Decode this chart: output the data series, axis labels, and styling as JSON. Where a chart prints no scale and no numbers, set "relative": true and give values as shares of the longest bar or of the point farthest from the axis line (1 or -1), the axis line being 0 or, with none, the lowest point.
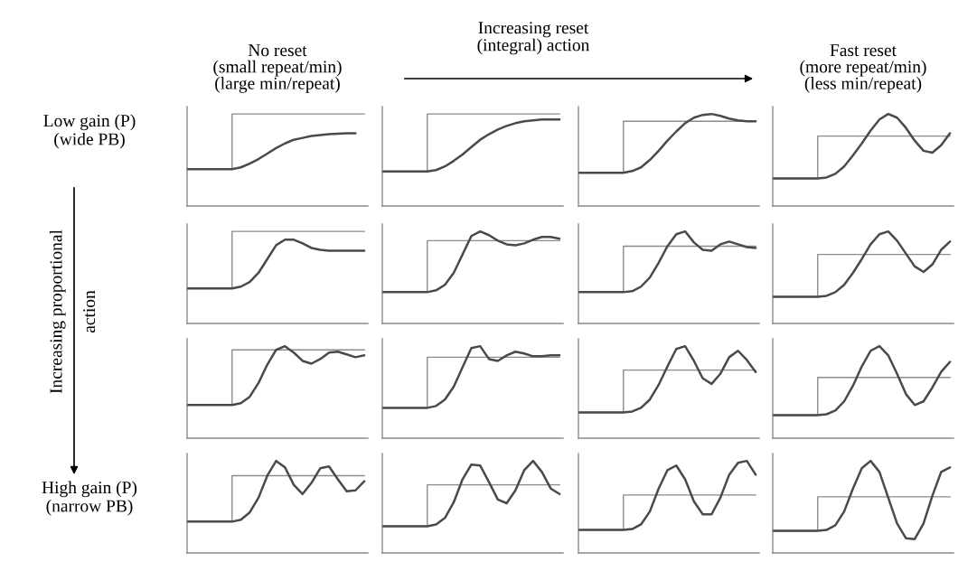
{
  "chart_data": [
    {
      "type": "line",
      "relative": true,
      "title": "No reset\n(small repeat/min)\n(large min/repeat)",
      "ylabel": "Low gain (P)\n(wide PB)",
      "annotations": [
        "Increasing reset\n(integral) action",
        "Increasing proportional\naction"
      ],
      "categories": [
        null,
        null,
        null,
        null,
        null,
        null,
        null,
        null,
        null,
        null,
        null,
        null,
        null,
        null,
        null,
        null,
        null,
        null,
        null,
        null,
        null
      ],
      "series": [
        {
          "type": "step",
          "color": "#8c8c8c",
          "values": [
            0.4,
            0.4,
            0.4,
            0.4,
            0.4,
            1.0,
            1.0,
            1.0,
            1.0,
            1.0,
            1.0,
            1.0,
            1.0,
            1.0,
            1.0,
            1.0,
            1.0,
            1.0,
            1.0,
            1.0,
            1.0
          ]
        },
        {
          "type": "line",
          "color": "#4a4a4a",
          "values": [
            0.4,
            0.4,
            0.4,
            0.4,
            0.4,
            0.4,
            0.42,
            0.46,
            0.51,
            0.57,
            0.63,
            0.68,
            0.72,
            0.74,
            0.76,
            0.77,
            0.78,
            0.785,
            0.79,
            0.79,
            null
          ]
        }
      ]
    },
    {
      "type": "line",
      "relative": true,
      "categories": [
        null,
        null,
        null,
        null,
        null,
        null,
        null,
        null,
        null,
        null,
        null,
        null,
        null,
        null,
        null,
        null,
        null,
        null,
        null,
        null,
        null
      ],
      "series": [
        {
          "type": "step",
          "color": "#8c8c8c",
          "values": [
            0.375,
            0.375,
            0.375,
            0.375,
            0.375,
            1.0,
            1.0,
            1.0,
            1.0,
            1.0,
            1.0,
            1.0,
            1.0,
            1.0,
            1.0,
            1.0,
            1.0,
            1.0,
            1.0,
            1.0,
            1.0
          ]
        },
        {
          "type": "line",
          "color": "#4a4a4a",
          "values": [
            0.375,
            0.375,
            0.375,
            0.375,
            0.375,
            0.375,
            0.39,
            0.43,
            0.49,
            0.56,
            0.64,
            0.72,
            0.78,
            0.83,
            0.87,
            0.9,
            0.92,
            0.93,
            0.94,
            0.94,
            0.94
          ]
        }
      ]
    },
    {
      "type": "line",
      "relative": true,
      "categories": [
        null,
        null,
        null,
        null,
        null,
        null,
        null,
        null,
        null,
        null,
        null,
        null,
        null,
        null,
        null,
        null,
        null,
        null,
        null,
        null,
        null
      ],
      "series": [
        {
          "type": "step",
          "color": "#8c8c8c",
          "values": [
            0.36,
            0.36,
            0.36,
            0.36,
            0.36,
            0.92,
            0.92,
            0.92,
            0.92,
            0.92,
            0.92,
            0.92,
            0.92,
            0.92,
            0.92,
            0.92,
            0.92,
            0.92,
            0.92,
            0.92,
            0.92
          ]
        },
        {
          "type": "line",
          "color": "#4a4a4a",
          "values": [
            0.36,
            0.36,
            0.36,
            0.36,
            0.36,
            0.36,
            0.38,
            0.42,
            0.5,
            0.6,
            0.71,
            0.81,
            0.9,
            0.96,
            0.99,
            1.0,
            0.98,
            0.95,
            0.93,
            0.92,
            0.92
          ]
        }
      ]
    },
    {
      "type": "line",
      "relative": true,
      "title": "Fast reset\n(more repeat/min)\n(less min/repeat)",
      "categories": [
        null,
        null,
        null,
        null,
        null,
        null,
        null,
        null,
        null,
        null,
        null,
        null,
        null,
        null,
        null,
        null,
        null,
        null,
        null,
        null,
        null
      ],
      "series": [
        {
          "type": "step",
          "color": "#8c8c8c",
          "values": [
            0.3,
            0.3,
            0.3,
            0.3,
            0.3,
            0.76,
            0.76,
            0.76,
            0.76,
            0.76,
            0.76,
            0.76,
            0.76,
            0.76,
            0.76,
            0.76,
            0.76,
            0.76,
            0.76,
            0.76,
            0.76
          ]
        },
        {
          "type": "line",
          "color": "#4a4a4a",
          "values": [
            0.3,
            0.3,
            0.3,
            0.3,
            0.3,
            0.3,
            0.31,
            0.35,
            0.43,
            0.55,
            0.68,
            0.82,
            0.94,
            1.0,
            0.96,
            0.85,
            0.71,
            0.6,
            0.58,
            0.66,
            0.79
          ]
        }
      ]
    },
    {
      "type": "line",
      "relative": true,
      "categories": [
        null,
        null,
        null,
        null,
        null,
        null,
        null,
        null,
        null,
        null,
        null,
        null,
        null,
        null,
        null,
        null,
        null,
        null,
        null,
        null,
        null
      ],
      "series": [
        {
          "type": "step",
          "color": "#8c8c8c",
          "values": [
            0.38,
            0.38,
            0.38,
            0.38,
            0.38,
            1.0,
            1.0,
            1.0,
            1.0,
            1.0,
            1.0,
            1.0,
            1.0,
            1.0,
            1.0,
            1.0,
            1.0,
            1.0,
            1.0,
            1.0,
            1.0
          ]
        },
        {
          "type": "line",
          "color": "#4a4a4a",
          "values": [
            0.38,
            0.38,
            0.38,
            0.38,
            0.38,
            0.38,
            0.4,
            0.45,
            0.55,
            0.7,
            0.85,
            0.91,
            0.91,
            0.87,
            0.82,
            0.8,
            0.79,
            0.79,
            0.79,
            0.79,
            0.79
          ]
        }
      ]
    },
    {
      "type": "line",
      "relative": true,
      "categories": [
        null,
        null,
        null,
        null,
        null,
        null,
        null,
        null,
        null,
        null,
        null,
        null,
        null,
        null,
        null,
        null,
        null,
        null,
        null,
        null,
        null
      ],
      "series": [
        {
          "type": "step",
          "color": "#8c8c8c",
          "values": [
            0.34,
            0.34,
            0.34,
            0.34,
            0.34,
            0.9,
            0.9,
            0.9,
            0.9,
            0.9,
            0.9,
            0.9,
            0.9,
            0.9,
            0.9,
            0.9,
            0.9,
            0.9,
            0.9,
            0.9,
            0.9
          ]
        },
        {
          "type": "line",
          "color": "#4a4a4a",
          "values": [
            0.34,
            0.34,
            0.34,
            0.34,
            0.34,
            0.34,
            0.36,
            0.42,
            0.55,
            0.75,
            0.95,
            1.0,
            0.96,
            0.9,
            0.86,
            0.85,
            0.87,
            0.91,
            0.94,
            0.94,
            0.92
          ]
        }
      ]
    },
    {
      "type": "line",
      "relative": true,
      "categories": [
        null,
        null,
        null,
        null,
        null,
        null,
        null,
        null,
        null,
        null,
        null,
        null,
        null,
        null,
        null,
        null,
        null,
        null,
        null,
        null,
        null
      ],
      "series": [
        {
          "type": "step",
          "color": "#8c8c8c",
          "values": [
            0.34,
            0.34,
            0.34,
            0.34,
            0.34,
            0.84,
            0.84,
            0.84,
            0.84,
            0.84,
            0.84,
            0.84,
            0.84,
            0.84,
            0.84,
            0.84,
            0.84,
            0.84,
            0.84,
            0.84,
            0.84
          ]
        },
        {
          "type": "line",
          "color": "#4a4a4a",
          "values": [
            0.34,
            0.34,
            0.34,
            0.34,
            0.34,
            0.34,
            0.35,
            0.4,
            0.5,
            0.66,
            0.84,
            0.97,
            1.0,
            0.88,
            0.8,
            0.79,
            0.86,
            0.89,
            0.86,
            0.83,
            0.82
          ]
        }
      ]
    },
    {
      "type": "line",
      "relative": true,
      "categories": [
        null,
        null,
        null,
        null,
        null,
        null,
        null,
        null,
        null,
        null,
        null,
        null,
        null,
        null,
        null,
        null,
        null,
        null,
        null,
        null,
        null
      ],
      "series": [
        {
          "type": "step",
          "color": "#8c8c8c",
          "values": [
            0.29,
            0.29,
            0.29,
            0.29,
            0.29,
            0.75,
            0.75,
            0.75,
            0.75,
            0.75,
            0.75,
            0.75,
            0.75,
            0.75,
            0.75,
            0.75,
            0.75,
            0.75,
            0.75,
            0.75,
            0.75
          ]
        },
        {
          "type": "line",
          "color": "#4a4a4a",
          "values": [
            0.29,
            0.29,
            0.29,
            0.29,
            0.29,
            0.29,
            0.3,
            0.34,
            0.42,
            0.55,
            0.7,
            0.86,
            0.97,
            1.0,
            0.9,
            0.76,
            0.62,
            0.56,
            0.64,
            0.8,
            0.89
          ]
        }
      ]
    },
    {
      "type": "line",
      "relative": true,
      "categories": [
        null,
        null,
        null,
        null,
        null,
        null,
        null,
        null,
        null,
        null,
        null,
        null,
        null,
        null,
        null,
        null,
        null,
        null,
        null,
        null,
        null
      ],
      "series": [
        {
          "type": "step",
          "color": "#8c8c8c",
          "values": [
            0.36,
            0.36,
            0.36,
            0.36,
            0.36,
            0.96,
            0.96,
            0.96,
            0.96,
            0.96,
            0.96,
            0.96,
            0.96,
            0.96,
            0.96,
            0.96,
            0.96,
            0.96,
            0.96,
            0.96,
            0.96
          ]
        },
        {
          "type": "line",
          "color": "#4a4a4a",
          "values": [
            0.36,
            0.36,
            0.36,
            0.36,
            0.36,
            0.36,
            0.38,
            0.45,
            0.6,
            0.8,
            0.96,
            1.0,
            0.93,
            0.84,
            0.81,
            0.86,
            0.93,
            0.94,
            0.91,
            0.88,
            0.9
          ]
        }
      ]
    },
    {
      "type": "line",
      "relative": true,
      "categories": [
        null,
        null,
        null,
        null,
        null,
        null,
        null,
        null,
        null,
        null,
        null,
        null,
        null,
        null,
        null,
        null,
        null,
        null,
        null,
        null,
        null
      ],
      "series": [
        {
          "type": "step",
          "color": "#8c8c8c",
          "values": [
            0.33,
            0.33,
            0.33,
            0.33,
            0.33,
            0.88,
            0.88,
            0.88,
            0.88,
            0.88,
            0.88,
            0.88,
            0.88,
            0.88,
            0.88,
            0.88,
            0.88,
            0.88,
            0.88,
            0.88,
            0.88
          ]
        },
        {
          "type": "line",
          "color": "#4a4a4a",
          "values": [
            0.33,
            0.33,
            0.33,
            0.33,
            0.33,
            0.33,
            0.35,
            0.42,
            0.56,
            0.77,
            0.98,
            1.0,
            0.86,
            0.84,
            0.9,
            0.94,
            0.92,
            0.89,
            0.89,
            0.9,
            0.9
          ]
        }
      ]
    },
    {
      "type": "line",
      "relative": true,
      "categories": [
        null,
        null,
        null,
        null,
        null,
        null,
        null,
        null,
        null,
        null,
        null,
        null,
        null,
        null,
        null,
        null,
        null,
        null,
        null,
        null,
        null
      ],
      "series": [
        {
          "type": "step",
          "color": "#8c8c8c",
          "values": [
            0.28,
            0.28,
            0.28,
            0.28,
            0.28,
            0.74,
            0.74,
            0.74,
            0.74,
            0.74,
            0.74,
            0.74,
            0.74,
            0.74,
            0.74,
            0.74,
            0.74,
            0.74,
            0.74,
            0.74,
            0.74
          ]
        },
        {
          "type": "line",
          "color": "#4a4a4a",
          "values": [
            0.28,
            0.28,
            0.28,
            0.28,
            0.28,
            0.28,
            0.29,
            0.33,
            0.42,
            0.58,
            0.78,
            0.97,
            1.0,
            0.84,
            0.65,
            0.59,
            0.7,
            0.88,
            0.95,
            0.85,
            0.72
          ]
        }
      ]
    },
    {
      "type": "line",
      "relative": true,
      "categories": [
        null,
        null,
        null,
        null,
        null,
        null,
        null,
        null,
        null,
        null,
        null,
        null,
        null,
        null,
        null,
        null,
        null,
        null,
        null,
        null,
        null
      ],
      "series": [
        {
          "type": "step",
          "color": "#8c8c8c",
          "values": [
            0.25,
            0.25,
            0.25,
            0.25,
            0.25,
            0.66,
            0.66,
            0.66,
            0.66,
            0.66,
            0.66,
            0.66,
            0.66,
            0.66,
            0.66,
            0.66,
            0.66,
            0.66,
            0.66,
            0.66,
            0.66
          ]
        },
        {
          "type": "line",
          "color": "#4a4a4a",
          "values": [
            0.25,
            0.25,
            0.25,
            0.25,
            0.25,
            0.25,
            0.26,
            0.3,
            0.4,
            0.57,
            0.78,
            0.95,
            1.0,
            0.9,
            0.7,
            0.48,
            0.36,
            0.4,
            0.55,
            0.72,
            0.83
          ]
        }
      ]
    },
    {
      "type": "line",
      "relative": true,
      "ylabel": "High gain (P)\n(narrow PB)",
      "categories": [
        null,
        null,
        null,
        null,
        null,
        null,
        null,
        null,
        null,
        null,
        null,
        null,
        null,
        null,
        null,
        null,
        null,
        null,
        null,
        null,
        null
      ],
      "series": [
        {
          "type": "step",
          "color": "#8c8c8c",
          "values": [
            0.34,
            0.34,
            0.34,
            0.34,
            0.34,
            0.84,
            0.84,
            0.84,
            0.84,
            0.84,
            0.84,
            0.84,
            0.84,
            0.84,
            0.84,
            0.84,
            0.84,
            0.84,
            0.84,
            0.84,
            0.84
          ]
        },
        {
          "type": "line",
          "color": "#4a4a4a",
          "values": [
            0.34,
            0.34,
            0.34,
            0.34,
            0.34,
            0.34,
            0.36,
            0.44,
            0.6,
            0.84,
            1.0,
            0.93,
            0.74,
            0.64,
            0.76,
            0.92,
            0.94,
            0.8,
            0.67,
            0.68,
            0.78
          ]
        }
      ]
    },
    {
      "type": "line",
      "relative": true,
      "categories": [
        null,
        null,
        null,
        null,
        null,
        null,
        null,
        null,
        null,
        null,
        null,
        null,
        null,
        null,
        null,
        null,
        null,
        null,
        null,
        null,
        null
      ],
      "series": [
        {
          "type": "step",
          "color": "#8c8c8c",
          "values": [
            0.29,
            0.29,
            0.29,
            0.29,
            0.29,
            0.74,
            0.74,
            0.74,
            0.74,
            0.74,
            0.74,
            0.74,
            0.74,
            0.74,
            0.74,
            0.74,
            0.74,
            0.74,
            0.74,
            0.74,
            0.74
          ]
        },
        {
          "type": "line",
          "color": "#4a4a4a",
          "values": [
            0.29,
            0.29,
            0.29,
            0.29,
            0.29,
            0.29,
            0.31,
            0.38,
            0.55,
            0.8,
            0.96,
            0.95,
            0.77,
            0.58,
            0.54,
            0.68,
            0.9,
            1.0,
            0.88,
            0.7,
            0.64
          ]
        }
      ]
    },
    {
      "type": "line",
      "relative": true,
      "categories": [
        null,
        null,
        null,
        null,
        null,
        null,
        null,
        null,
        null,
        null,
        null,
        null,
        null,
        null,
        null,
        null,
        null,
        null,
        null,
        null,
        null
      ],
      "series": [
        {
          "type": "step",
          "color": "#8c8c8c",
          "values": [
            0.25,
            0.25,
            0.25,
            0.25,
            0.25,
            0.63,
            0.63,
            0.63,
            0.63,
            0.63,
            0.63,
            0.63,
            0.63,
            0.63,
            0.63,
            0.63,
            0.63,
            0.63,
            0.63,
            0.63,
            0.63
          ]
        },
        {
          "type": "line",
          "color": "#4a4a4a",
          "values": [
            0.25,
            0.25,
            0.25,
            0.25,
            0.25,
            0.25,
            0.26,
            0.31,
            0.45,
            0.7,
            0.9,
            0.95,
            0.8,
            0.56,
            0.42,
            0.42,
            0.6,
            0.85,
            0.98,
            1.0,
            0.85
          ]
        }
      ]
    },
    {
      "type": "line",
      "relative": true,
      "categories": [
        null,
        null,
        null,
        null,
        null,
        null,
        null,
        null,
        null,
        null,
        null,
        null,
        null,
        null,
        null,
        null,
        null,
        null,
        null,
        null,
        null
      ],
      "series": [
        {
          "type": "step",
          "color": "#8c8c8c",
          "values": [
            0.24,
            0.24,
            0.24,
            0.24,
            0.24,
            0.61,
            0.61,
            0.61,
            0.61,
            0.61,
            0.61,
            0.61,
            0.61,
            0.61,
            0.61,
            0.61,
            0.61,
            0.61,
            0.61,
            0.61,
            0.61
          ]
        },
        {
          "type": "line",
          "color": "#4a4a4a",
          "values": [
            0.24,
            0.24,
            0.24,
            0.24,
            0.24,
            0.24,
            0.25,
            0.3,
            0.45,
            0.7,
            0.92,
            1.0,
            0.88,
            0.6,
            0.32,
            0.16,
            0.15,
            0.32,
            0.62,
            0.88,
            0.93
          ]
        }
      ]
    }
  ]
}
